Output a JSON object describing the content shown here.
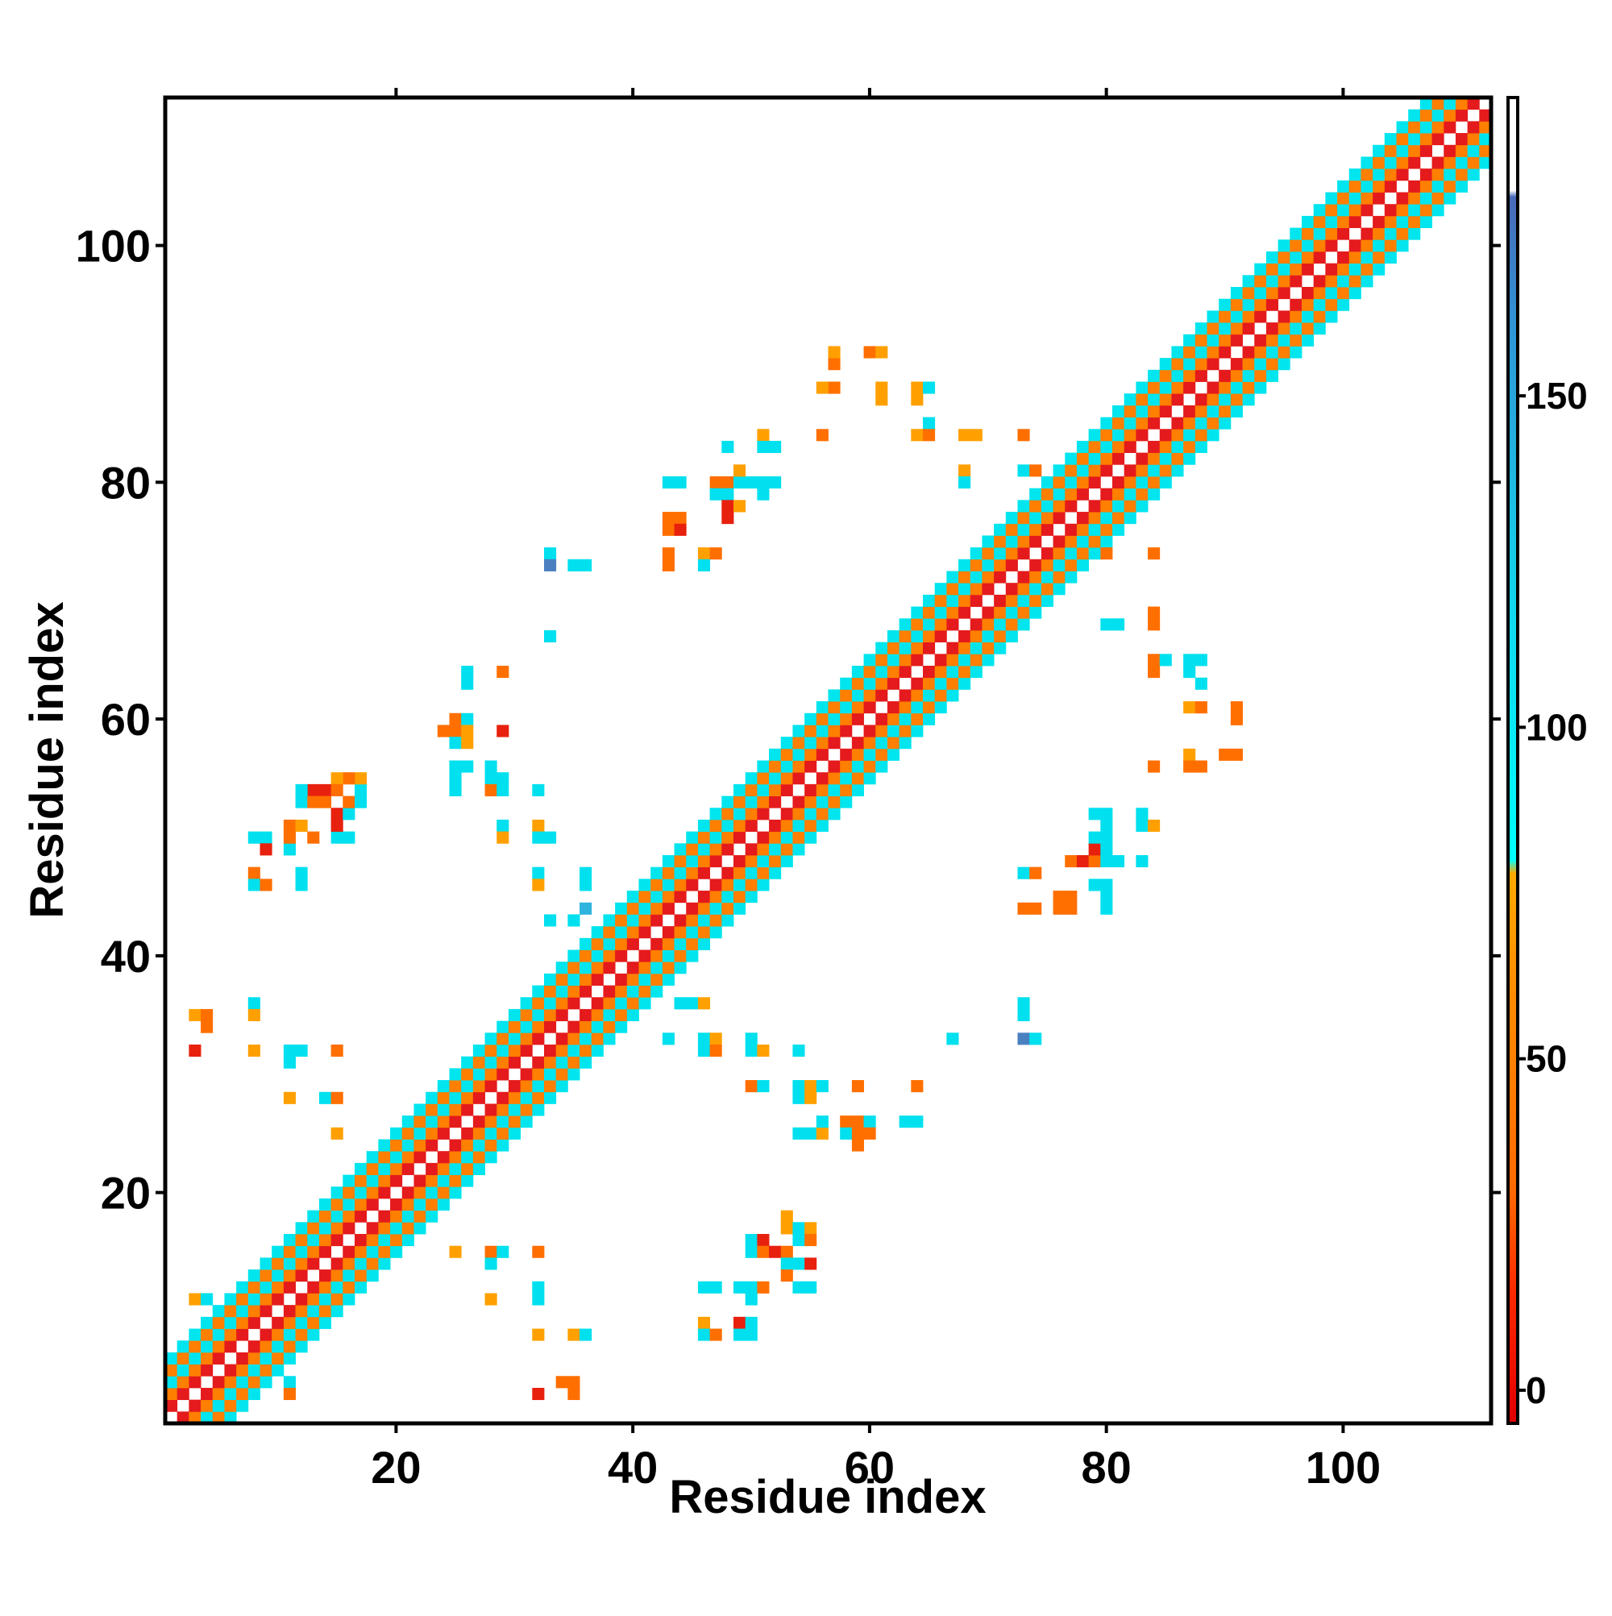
{
  "chart_data": {
    "type": "heatmap",
    "title": "",
    "xlabel": "Residue index",
    "ylabel": "Residue index",
    "xlim": [
      0.5,
      112.5
    ],
    "ylim": [
      0.5,
      112.5
    ],
    "x_ticks": [
      20,
      40,
      60,
      80,
      100
    ],
    "y_ticks": [
      20,
      40,
      60,
      80,
      100
    ],
    "grid": false,
    "legend": "none",
    "colorbar": {
      "placement": "right",
      "range": [
        -5,
        195
      ],
      "ticks": [
        0,
        50,
        100,
        150
      ],
      "bands": [
        {
          "from": -5,
          "to": 30,
          "color": "#e41a1c"
        },
        {
          "from": 30,
          "to": 80,
          "color": "#ff7f00"
        },
        {
          "from": 80,
          "to": 180,
          "color": "#00e5ee"
        },
        {
          "from": 180,
          "to": 195,
          "color": "#ffffff"
        }
      ],
      "gradient_stops": [
        {
          "value": -5,
          "color": "#e00000"
        },
        {
          "value": 15,
          "color": "#ff2a00"
        },
        {
          "value": 30,
          "color": "#ff6a00"
        },
        {
          "value": 60,
          "color": "#ff8c00"
        },
        {
          "value": 78,
          "color": "#ffaa00"
        },
        {
          "value": 80,
          "color": "#00ffff"
        },
        {
          "value": 120,
          "color": "#12d4ea"
        },
        {
          "value": 160,
          "color": "#2f96d6"
        },
        {
          "value": 180,
          "color": "#4a6ab8"
        },
        {
          "value": 181,
          "color": "#ffffff"
        },
        {
          "value": 195,
          "color": "#ffffff"
        }
      ]
    },
    "palette": {
      "R": "#e8200e",
      "O": "#ff6f00",
      "Y": "#ffa000",
      "C": "#00e0ee",
      "B": "#2fb4de",
      "D": "#4a80c0"
    },
    "diagonal_band": {
      "from": 1,
      "to": 112,
      "pattern": [
        {
          "offset": 0,
          "value": null
        },
        {
          "offset": 1,
          "value": 25
        },
        {
          "offset": 2,
          "value": 55
        },
        {
          "offset": 3,
          "value": 110
        },
        {
          "offset": 4,
          "value": 45
        },
        {
          "offset": 5,
          "value": 120
        }
      ]
    },
    "sparse_cells": [
      [
        3,
        35,
        "Y"
      ],
      [
        4,
        35,
        "O"
      ],
      [
        4,
        34,
        "O"
      ],
      [
        3,
        32,
        "R"
      ],
      [
        8,
        36,
        "C"
      ],
      [
        8,
        35,
        "Y"
      ],
      [
        8,
        32,
        "Y"
      ],
      [
        11,
        32,
        "C"
      ],
      [
        12,
        32,
        "C"
      ],
      [
        11,
        31,
        "C"
      ],
      [
        15,
        32,
        "O"
      ],
      [
        11,
        28,
        "Y"
      ],
      [
        14,
        28,
        "C"
      ],
      [
        15,
        28,
        "O"
      ],
      [
        15,
        25,
        "Y"
      ],
      [
        3,
        11,
        "Y"
      ],
      [
        4,
        11,
        "C"
      ],
      [
        11,
        4,
        "C"
      ],
      [
        11,
        3,
        "O"
      ],
      [
        8,
        50,
        "C"
      ],
      [
        9,
        50,
        "C"
      ],
      [
        9,
        49,
        "R"
      ],
      [
        11,
        49,
        "C"
      ],
      [
        11,
        50,
        "O"
      ],
      [
        11,
        51,
        "O"
      ],
      [
        12,
        51,
        "Y"
      ],
      [
        13,
        50,
        "O"
      ],
      [
        15,
        50,
        "C"
      ],
      [
        16,
        50,
        "C"
      ],
      [
        15,
        51,
        "R"
      ],
      [
        15,
        52,
        "R"
      ],
      [
        16,
        52,
        "C"
      ],
      [
        16,
        53,
        "O"
      ],
      [
        17,
        53,
        "C"
      ],
      [
        17,
        54,
        "C"
      ],
      [
        17,
        55,
        "Y"
      ],
      [
        16,
        55,
        "O"
      ],
      [
        15,
        55,
        "Y"
      ],
      [
        14,
        54,
        "R"
      ],
      [
        13,
        54,
        "R"
      ],
      [
        12,
        54,
        "C"
      ],
      [
        12,
        53,
        "C"
      ],
      [
        13,
        53,
        "O"
      ],
      [
        14,
        53,
        "O"
      ],
      [
        15,
        54,
        "O"
      ],
      [
        8,
        47,
        "O"
      ],
      [
        8,
        46,
        "C"
      ],
      [
        9,
        46,
        "O"
      ],
      [
        12,
        47,
        "C"
      ],
      [
        12,
        46,
        "C"
      ],
      [
        25,
        15,
        "Y"
      ],
      [
        28,
        15,
        "O"
      ],
      [
        29,
        15,
        "C"
      ],
      [
        28,
        14,
        "C"
      ],
      [
        32,
        15,
        "O"
      ],
      [
        28,
        11,
        "Y"
      ],
      [
        32,
        11,
        "C"
      ],
      [
        32,
        12,
        "C"
      ],
      [
        32,
        8,
        "Y"
      ],
      [
        35,
        8,
        "Y"
      ],
      [
        36,
        8,
        "C"
      ],
      [
        32,
        3,
        "R"
      ],
      [
        34,
        4,
        "O"
      ],
      [
        35,
        4,
        "O"
      ],
      [
        35,
        3,
        "O"
      ],
      [
        26,
        64,
        "C"
      ],
      [
        26,
        63,
        "C"
      ],
      [
        29,
        64,
        "O"
      ],
      [
        24,
        59,
        "O"
      ],
      [
        25,
        59,
        "O"
      ],
      [
        25,
        60,
        "O"
      ],
      [
        26,
        60,
        "C"
      ],
      [
        26,
        59,
        "Y"
      ],
      [
        25,
        58,
        "C"
      ],
      [
        26,
        58,
        "Y"
      ],
      [
        29,
        59,
        "R"
      ],
      [
        25,
        56,
        "C"
      ],
      [
        26,
        56,
        "C"
      ],
      [
        25,
        55,
        "C"
      ],
      [
        28,
        56,
        "C"
      ],
      [
        28,
        55,
        "C"
      ],
      [
        29,
        55,
        "C"
      ],
      [
        25,
        54,
        "C"
      ],
      [
        28,
        54,
        "O"
      ],
      [
        29,
        54,
        "C"
      ],
      [
        32,
        54,
        "C"
      ],
      [
        29,
        51,
        "C"
      ],
      [
        29,
        50,
        "Y"
      ],
      [
        32,
        51,
        "Y"
      ],
      [
        32,
        50,
        "C"
      ],
      [
        33,
        50,
        "C"
      ],
      [
        32,
        47,
        "C"
      ],
      [
        32,
        46,
        "Y"
      ],
      [
        36,
        47,
        "C"
      ],
      [
        36,
        46,
        "C"
      ],
      [
        33,
        43,
        "C"
      ],
      [
        35,
        43,
        "C"
      ],
      [
        36,
        44,
        "B"
      ],
      [
        33,
        74,
        "C"
      ],
      [
        33,
        73,
        "D"
      ],
      [
        35,
        73,
        "C"
      ],
      [
        36,
        73,
        "C"
      ],
      [
        33,
        67,
        "C"
      ],
      [
        43,
        74,
        "O"
      ],
      [
        43,
        73,
        "O"
      ],
      [
        46,
        74,
        "Y"
      ],
      [
        47,
        74,
        "O"
      ],
      [
        46,
        73,
        "C"
      ],
      [
        43,
        77,
        "O"
      ],
      [
        44,
        77,
        "O"
      ],
      [
        43,
        76,
        "O"
      ],
      [
        44,
        76,
        "R"
      ],
      [
        43,
        80,
        "C"
      ],
      [
        44,
        80,
        "C"
      ],
      [
        47,
        80,
        "O"
      ],
      [
        48,
        80,
        "O"
      ],
      [
        47,
        79,
        "C"
      ],
      [
        48,
        79,
        "C"
      ],
      [
        48,
        78,
        "R"
      ],
      [
        49,
        78,
        "Y"
      ],
      [
        48,
        77,
        "R"
      ],
      [
        49,
        80,
        "C"
      ],
      [
        50,
        80,
        "C"
      ],
      [
        49,
        81,
        "Y"
      ],
      [
        51,
        80,
        "C"
      ],
      [
        51,
        79,
        "C"
      ],
      [
        52,
        80,
        "C"
      ],
      [
        48,
        83,
        "C"
      ],
      [
        51,
        84,
        "Y"
      ],
      [
        51,
        83,
        "C"
      ],
      [
        52,
        83,
        "C"
      ],
      [
        56,
        84,
        "O"
      ],
      [
        57,
        88,
        "O"
      ],
      [
        57,
        90,
        "O"
      ],
      [
        57,
        91,
        "Y"
      ],
      [
        56,
        88,
        "Y"
      ],
      [
        60,
        91,
        "O"
      ],
      [
        61,
        91,
        "Y"
      ],
      [
        61,
        88,
        "Y"
      ],
      [
        61,
        87,
        "Y"
      ],
      [
        64,
        88,
        "Y"
      ],
      [
        65,
        88,
        "C"
      ],
      [
        64,
        87,
        "Y"
      ],
      [
        65,
        85,
        "C"
      ],
      [
        64,
        84,
        "Y"
      ],
      [
        65,
        84,
        "O"
      ],
      [
        68,
        84,
        "Y"
      ],
      [
        69,
        84,
        "Y"
      ],
      [
        68,
        81,
        "Y"
      ],
      [
        68,
        80,
        "C"
      ],
      [
        73,
        84,
        "O"
      ],
      [
        44,
        36,
        "C"
      ],
      [
        45,
        36,
        "C"
      ],
      [
        46,
        36,
        "Y"
      ],
      [
        43,
        33,
        "C"
      ],
      [
        46,
        33,
        "C"
      ],
      [
        47,
        33,
        "Y"
      ],
      [
        46,
        32,
        "C"
      ],
      [
        47,
        32,
        "O"
      ],
      [
        50,
        33,
        "C"
      ],
      [
        50,
        32,
        "C"
      ],
      [
        51,
        32,
        "Y"
      ],
      [
        50,
        29,
        "O"
      ],
      [
        51,
        29,
        "C"
      ],
      [
        54,
        32,
        "C"
      ],
      [
        54,
        29,
        "C"
      ],
      [
        55,
        29,
        "Y"
      ],
      [
        56,
        29,
        "C"
      ],
      [
        54,
        28,
        "C"
      ],
      [
        55,
        28,
        "Y"
      ],
      [
        59,
        29,
        "O"
      ],
      [
        64,
        29,
        "O"
      ],
      [
        54,
        25,
        "C"
      ],
      [
        55,
        25,
        "C"
      ],
      [
        56,
        25,
        "Y"
      ],
      [
        56,
        26,
        "C"
      ],
      [
        58,
        26,
        "O"
      ],
      [
        59,
        26,
        "O"
      ],
      [
        60,
        26,
        "C"
      ],
      [
        58,
        25,
        "C"
      ],
      [
        59,
        25,
        "O"
      ],
      [
        59,
        24,
        "O"
      ],
      [
        60,
        25,
        "O"
      ],
      [
        63,
        26,
        "C"
      ],
      [
        64,
        26,
        "C"
      ],
      [
        67,
        33,
        "C"
      ],
      [
        53,
        18,
        "Y"
      ],
      [
        53,
        17,
        "Y"
      ],
      [
        54,
        17,
        "C"
      ],
      [
        55,
        17,
        "Y"
      ],
      [
        54,
        16,
        "C"
      ],
      [
        55,
        16,
        "O"
      ],
      [
        50,
        16,
        "C"
      ],
      [
        51,
        16,
        "R"
      ],
      [
        50,
        15,
        "C"
      ],
      [
        51,
        15,
        "O"
      ],
      [
        52,
        15,
        "R"
      ],
      [
        53,
        15,
        "O"
      ],
      [
        53,
        14,
        "C"
      ],
      [
        54,
        14,
        "C"
      ],
      [
        55,
        14,
        "R"
      ],
      [
        53,
        13,
        "O"
      ],
      [
        54,
        12,
        "C"
      ],
      [
        55,
        12,
        "C"
      ],
      [
        46,
        12,
        "C"
      ],
      [
        47,
        12,
        "C"
      ],
      [
        49,
        12,
        "C"
      ],
      [
        50,
        12,
        "C"
      ],
      [
        51,
        12,
        "O"
      ],
      [
        50,
        11,
        "C"
      ],
      [
        46,
        9,
        "Y"
      ],
      [
        46,
        8,
        "C"
      ],
      [
        47,
        8,
        "O"
      ],
      [
        49,
        9,
        "R"
      ],
      [
        50,
        9,
        "C"
      ],
      [
        49,
        8,
        "C"
      ],
      [
        50,
        8,
        "C"
      ],
      [
        73,
        36,
        "C"
      ],
      [
        73,
        35,
        "C"
      ],
      [
        73,
        33,
        "D"
      ],
      [
        74,
        33,
        "C"
      ],
      [
        73,
        47,
        "C"
      ],
      [
        74,
        47,
        "O"
      ],
      [
        73,
        44,
        "O"
      ],
      [
        74,
        44,
        "O"
      ],
      [
        76,
        45,
        "O"
      ],
      [
        77,
        45,
        "O"
      ],
      [
        76,
        44,
        "O"
      ],
      [
        77,
        44,
        "O"
      ],
      [
        79,
        46,
        "C"
      ],
      [
        80,
        46,
        "C"
      ],
      [
        80,
        45,
        "C"
      ],
      [
        80,
        44,
        "C"
      ],
      [
        77,
        48,
        "O"
      ],
      [
        78,
        48,
        "R"
      ],
      [
        79,
        48,
        "O"
      ],
      [
        80,
        48,
        "C"
      ],
      [
        81,
        48,
        "C"
      ],
      [
        79,
        49,
        "R"
      ],
      [
        80,
        49,
        "C"
      ],
      [
        79,
        50,
        "C"
      ],
      [
        80,
        50,
        "C"
      ],
      [
        80,
        51,
        "C"
      ],
      [
        79,
        52,
        "C"
      ],
      [
        80,
        52,
        "C"
      ],
      [
        83,
        52,
        "C"
      ],
      [
        83,
        51,
        "C"
      ],
      [
        84,
        51,
        "Y"
      ],
      [
        83,
        48,
        "C"
      ],
      [
        80,
        68,
        "C"
      ],
      [
        81,
        68,
        "C"
      ],
      [
        84,
        69,
        "O"
      ],
      [
        84,
        68,
        "O"
      ],
      [
        84,
        65,
        "O"
      ],
      [
        84,
        64,
        "O"
      ],
      [
        85,
        65,
        "C"
      ],
      [
        87,
        65,
        "C"
      ],
      [
        88,
        65,
        "C"
      ],
      [
        87,
        64,
        "C"
      ],
      [
        88,
        63,
        "C"
      ],
      [
        87,
        61,
        "Y"
      ],
      [
        88,
        61,
        "O"
      ],
      [
        91,
        61,
        "O"
      ],
      [
        91,
        60,
        "O"
      ],
      [
        84,
        56,
        "O"
      ],
      [
        87,
        57,
        "Y"
      ],
      [
        87,
        56,
        "O"
      ],
      [
        88,
        56,
        "O"
      ],
      [
        90,
        57,
        "O"
      ],
      [
        91,
        57,
        "O"
      ],
      [
        80,
        74,
        "O"
      ],
      [
        84,
        74,
        "O"
      ],
      [
        73,
        81,
        "C"
      ],
      [
        74,
        81,
        "O"
      ]
    ]
  }
}
